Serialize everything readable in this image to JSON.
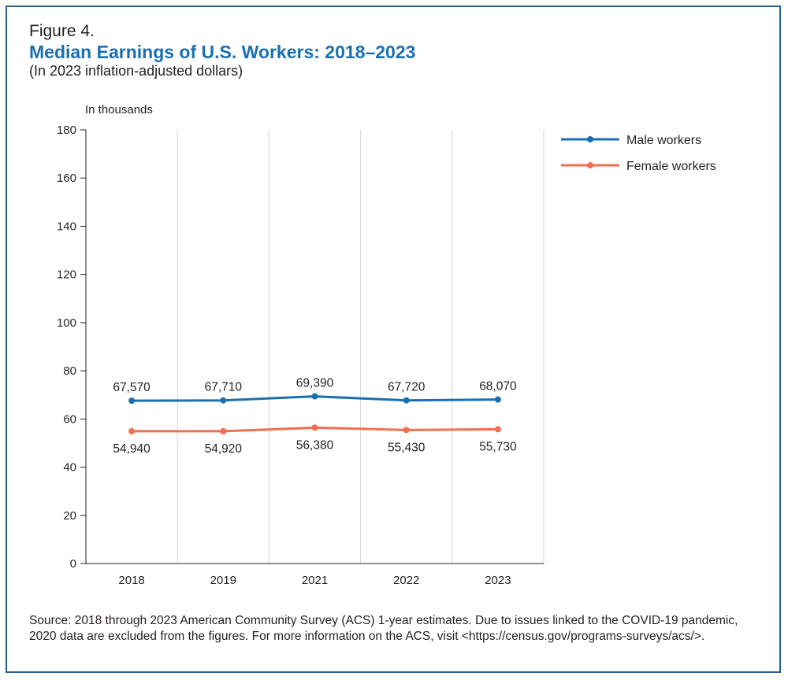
{
  "figure": {
    "label": "Figure 4.",
    "title": "Median Earnings of U.S. Workers: 2018–2023",
    "subtitle": "(In 2023 inflation-adjusted dollars)"
  },
  "source_note": "Source: 2018 through 2023 American Community Survey (ACS) 1-year estimates. Due to issues linked to the COVID-19 pandemic, 2020 data are excluded from the figures. For more information on the ACS, visit <https://census.gov/programs-surveys/acs/>.",
  "chart_data": {
    "type": "line",
    "title": "Median Earnings of U.S. Workers: 2018–2023",
    "ylabel": "In thousands",
    "xlabel": "",
    "categories": [
      "2018",
      "2019",
      "2021",
      "2022",
      "2023"
    ],
    "ylim": [
      0,
      180
    ],
    "yticks": [
      0,
      20,
      40,
      60,
      80,
      100,
      120,
      140,
      160,
      180
    ],
    "grid": "vertical",
    "legend_position": "top-right",
    "series": [
      {
        "name": "Male workers",
        "color": "#1a6fb0",
        "values": [
          67.57,
          67.71,
          69.39,
          67.72,
          68.07
        ],
        "labels": [
          "67,570",
          "67,710",
          "69,390",
          "67,720",
          "68,070"
        ],
        "label_position": "above"
      },
      {
        "name": "Female workers",
        "color": "#ef6f4f",
        "values": [
          54.94,
          54.92,
          56.38,
          55.43,
          55.73
        ],
        "labels": [
          "54,940",
          "54,920",
          "56,380",
          "55,430",
          "55,730"
        ],
        "label_position": "below"
      }
    ]
  }
}
